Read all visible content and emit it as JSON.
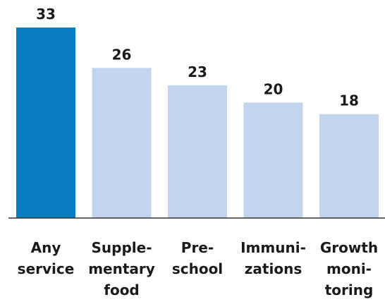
{
  "chart_data": {
    "type": "bar",
    "categories": [
      "Any\nservice",
      "Supple-\nmentary\nfood",
      "Pre-\nschool",
      "Immuni-\nzations",
      "Growth\nmoni-\ntoring"
    ],
    "values": [
      33,
      26,
      23,
      20,
      18
    ],
    "colors": [
      "#0a7cc1",
      "#c3d4ee",
      "#c3d4ee",
      "#c3d4ee",
      "#c3d4ee"
    ],
    "ylim": [
      0,
      33
    ]
  }
}
